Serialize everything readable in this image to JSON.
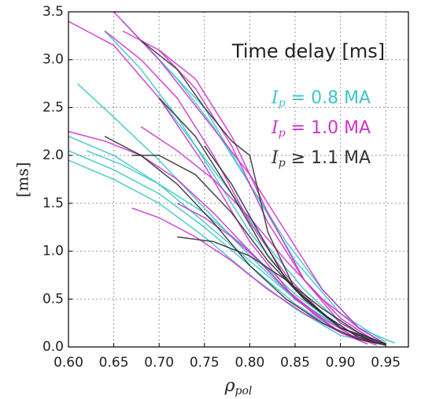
{
  "chart_data": {
    "type": "line",
    "title": "Time delay [ms]",
    "xlabel": {
      "symbol": "ρ",
      "sub": "pol"
    },
    "ylabel": "[ms]",
    "xlim": [
      0.6,
      0.975
    ],
    "ylim": [
      0,
      3.5
    ],
    "grid": true,
    "xticks": [
      {
        "value": 0.6,
        "label": "0.60"
      },
      {
        "value": 0.65,
        "label": "0.65"
      },
      {
        "value": 0.7,
        "label": "0.70"
      },
      {
        "value": 0.75,
        "label": "0.75"
      },
      {
        "value": 0.8,
        "label": "0.80"
      },
      {
        "value": 0.85,
        "label": "0.85"
      },
      {
        "value": 0.9,
        "label": "0.90"
      },
      {
        "value": 0.95,
        "label": "0.95"
      }
    ],
    "yticks": [
      {
        "value": 0,
        "label": "0.0"
      },
      {
        "value": 0.5,
        "label": "0.5"
      },
      {
        "value": 1,
        "label": "1.0"
      },
      {
        "value": 1.5,
        "label": "1.5"
      },
      {
        "value": 2,
        "label": "2.0"
      },
      {
        "value": 2.5,
        "label": "2.5"
      },
      {
        "value": 3,
        "label": "3.0"
      },
      {
        "value": 3.5,
        "label": "3.5"
      }
    ],
    "groups": [
      {
        "name": {
          "symbol": "I",
          "sub": "p",
          "text": " = 0.8 MA"
        },
        "color": "#3cc6c8",
        "lines": [
          {
            "x": [
              0.6,
              0.65,
              0.7,
              0.75,
              0.8,
              0.85,
              0.9,
              0.95
            ],
            "values": [
              2.05,
              1.85,
              1.6,
              1.25,
              0.85,
              0.45,
              0.15,
              0.02
            ]
          },
          {
            "x": [
              0.6,
              0.65,
              0.7,
              0.75,
              0.8,
              0.85,
              0.9,
              0.95
            ],
            "values": [
              2.2,
              2.0,
              1.7,
              1.3,
              0.9,
              0.5,
              0.2,
              0.03
            ]
          },
          {
            "x": [
              0.61,
              0.65,
              0.7,
              0.75,
              0.8,
              0.85,
              0.9,
              0.95
            ],
            "values": [
              2.75,
              2.4,
              1.95,
              1.45,
              0.95,
              0.5,
              0.2,
              0.03
            ]
          },
          {
            "x": [
              0.64,
              0.68,
              0.72,
              0.76,
              0.8,
              0.85,
              0.9,
              0.95
            ],
            "values": [
              3.3,
              2.9,
              2.4,
              1.8,
              1.2,
              0.6,
              0.2,
              0.03
            ]
          },
          {
            "x": [
              0.6,
              0.65,
              0.7,
              0.75,
              0.8,
              0.85,
              0.9,
              0.95
            ],
            "values": [
              1.95,
              1.75,
              1.5,
              1.15,
              0.75,
              0.4,
              0.12,
              0.02
            ]
          },
          {
            "x": [
              0.68,
              0.72,
              0.76,
              0.8,
              0.84,
              0.88,
              0.92,
              0.96
            ],
            "values": [
              3.2,
              2.8,
              2.3,
              1.7,
              1.1,
              0.6,
              0.2,
              0.04
            ]
          },
          {
            "x": [
              0.66,
              0.7,
              0.75,
              0.8,
              0.85,
              0.9,
              0.95
            ],
            "values": [
              3.4,
              3.0,
              2.5,
              1.7,
              0.9,
              0.35,
              0.05
            ]
          },
          {
            "x": [
              0.62,
              0.66,
              0.7,
              0.75,
              0.8,
              0.85,
              0.9,
              0.95
            ],
            "values": [
              2.05,
              1.9,
              1.7,
              1.4,
              1.0,
              0.55,
              0.2,
              0.03
            ]
          },
          {
            "x": [
              0.7,
              0.74,
              0.78,
              0.82,
              0.86,
              0.9,
              0.94
            ],
            "values": [
              2.6,
              2.1,
              1.6,
              1.05,
              0.6,
              0.25,
              0.05
            ]
          }
        ]
      },
      {
        "name": {
          "symbol": "I",
          "sub": "p",
          "text": " = 1.0 MA"
        },
        "color": "#cc33cc",
        "lines": [
          {
            "x": [
              0.6,
              0.65,
              0.7,
              0.75,
              0.8,
              0.85,
              0.9,
              0.95
            ],
            "values": [
              3.4,
              3.15,
              2.6,
              1.9,
              1.1,
              0.5,
              0.15,
              0.02
            ]
          },
          {
            "x": [
              0.65,
              0.7,
              0.75,
              0.8,
              0.84,
              0.88,
              0.92,
              0.95
            ],
            "values": [
              3.5,
              3.0,
              2.4,
              1.8,
              1.2,
              0.6,
              0.2,
              0.03
            ]
          },
          {
            "x": [
              0.67,
              0.7,
              0.74,
              0.78,
              0.82,
              0.86,
              0.9,
              0.94
            ],
            "values": [
              1.45,
              1.35,
              1.15,
              0.9,
              0.6,
              0.35,
              0.15,
              0.02
            ]
          },
          {
            "x": [
              0.64,
              0.68,
              0.72,
              0.76,
              0.8,
              0.84,
              0.88,
              0.92,
              0.95
            ],
            "values": [
              3.3,
              3.0,
              2.6,
              2.0,
              1.3,
              0.75,
              0.35,
              0.1,
              0.02
            ]
          },
          {
            "x": [
              0.72,
              0.75,
              0.78,
              0.81,
              0.84,
              0.87,
              0.9,
              0.93
            ],
            "values": [
              1.5,
              1.35,
              1.15,
              0.9,
              0.6,
              0.35,
              0.15,
              0.03
            ]
          },
          {
            "x": [
              0.68,
              0.72,
              0.76,
              0.8,
              0.84,
              0.88,
              0.92,
              0.95
            ],
            "values": [
              2.3,
              2.05,
              1.75,
              1.35,
              0.9,
              0.5,
              0.2,
              0.03
            ]
          },
          {
            "x": [
              0.7,
              0.74,
              0.78,
              0.82,
              0.86,
              0.9,
              0.94
            ],
            "values": [
              3.1,
              2.7,
              2.1,
              1.3,
              0.7,
              0.3,
              0.05
            ]
          },
          {
            "x": [
              0.6,
              0.64,
              0.68,
              0.72,
              0.76,
              0.8,
              0.84,
              0.88,
              0.92,
              0.95
            ],
            "values": [
              2.25,
              2.15,
              2.0,
              1.75,
              1.4,
              1.0,
              0.6,
              0.3,
              0.08,
              0.02
            ]
          },
          {
            "x": [
              0.66,
              0.7,
              0.74,
              0.78,
              0.82,
              0.86,
              0.9,
              0.94
            ],
            "values": [
              3.3,
              3.1,
              2.8,
              2.2,
              1.4,
              0.7,
              0.25,
              0.04
            ]
          }
        ]
      },
      {
        "name": {
          "symbol": "I",
          "sub": "p",
          "text": " ≥ 1.1 MA"
        },
        "color": "#333333",
        "lines": [
          {
            "x": [
              0.68,
              0.72,
              0.75,
              0.78,
              0.8,
              0.82,
              0.85,
              0.9,
              0.95
            ],
            "values": [
              3.2,
              2.9,
              2.5,
              2.15,
              2.0,
              1.2,
              0.6,
              0.2,
              0.03
            ]
          },
          {
            "x": [
              0.64,
              0.68,
              0.72,
              0.76,
              0.8,
              0.84,
              0.88,
              0.92,
              0.95
            ],
            "values": [
              2.2,
              2.0,
              1.7,
              1.3,
              0.85,
              0.5,
              0.25,
              0.08,
              0.02
            ]
          },
          {
            "x": [
              0.72,
              0.76,
              0.8,
              0.84,
              0.88,
              0.92,
              0.95
            ],
            "values": [
              1.15,
              1.1,
              0.95,
              0.7,
              0.4,
              0.15,
              0.03
            ]
          },
          {
            "x": [
              0.7,
              0.74,
              0.78,
              0.82,
              0.86,
              0.9,
              0.94
            ],
            "values": [
              2.6,
              2.2,
              1.6,
              0.95,
              0.5,
              0.2,
              0.04
            ]
          },
          {
            "x": [
              0.75,
              0.78,
              0.81,
              0.84,
              0.88,
              0.92,
              0.95
            ],
            "values": [
              2.1,
              1.7,
              1.2,
              0.7,
              0.35,
              0.1,
              0.02
            ]
          },
          {
            "x": [
              0.67,
              0.7,
              0.74,
              0.78,
              0.82,
              0.86,
              0.9,
              0.94
            ],
            "values": [
              2.0,
              2.0,
              1.8,
              1.4,
              0.9,
              0.5,
              0.2,
              0.04
            ]
          }
        ]
      }
    ]
  }
}
